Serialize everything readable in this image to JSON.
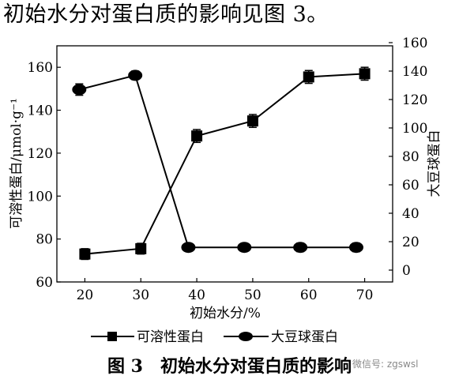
{
  "heading": "初始水分对蛋白质的影响见图 3。",
  "figure_caption": "图 3　初始水分对蛋白质的影响",
  "watermark": "微信号: zgswsl",
  "colors": {
    "ink": "#000000",
    "background": "#ffffff",
    "watermark": "#8a8a8a"
  },
  "chart_data": {
    "type": "line",
    "xlabel": "初始水分/%",
    "x_ticks": [
      20,
      30,
      40,
      50,
      60,
      70
    ],
    "xlim": [
      15,
      75
    ],
    "y_left": {
      "label": "可溶性蛋白/μmol·g⁻¹",
      "ylim": [
        60,
        170
      ],
      "ticks": [
        60,
        80,
        100,
        120,
        140,
        160
      ]
    },
    "y_right": {
      "label": "大豆球蛋白",
      "ylim": [
        0,
        160
      ],
      "ticks": [
        0,
        20,
        40,
        60,
        80,
        100,
        120,
        140,
        160
      ]
    },
    "legend_position": "bottom",
    "grid": false,
    "series": [
      {
        "name": "可溶性蛋白",
        "marker": "square",
        "axis": "left",
        "x": [
          20,
          30,
          40,
          50,
          60,
          70
        ],
        "y": [
          73,
          75.5,
          128,
          135,
          155.5,
          157
        ],
        "error": [
          2.5,
          2.5,
          3,
          3,
          3,
          3
        ]
      },
      {
        "name": "大豆球蛋白",
        "marker": "circle",
        "axis": "right",
        "x": [
          19,
          29,
          38.5,
          48.5,
          58.5,
          68.5
        ],
        "y": [
          127,
          137,
          16,
          16,
          16,
          16
        ],
        "error": [
          4,
          3,
          2,
          2,
          3,
          3
        ]
      }
    ]
  }
}
